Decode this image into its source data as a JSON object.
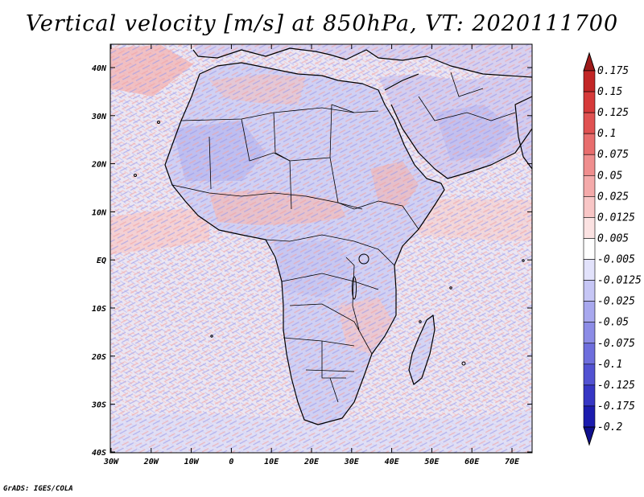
{
  "title": "Vertical velocity [m/s] at 850hPa, VT: 2020111700",
  "credit": "GrADS: IGES/COLA",
  "axes": {
    "lat_labels": [
      "40N",
      "30N",
      "20N",
      "10N",
      "EQ",
      "10S",
      "20S",
      "30S",
      "40S"
    ],
    "lon_labels": [
      "30W",
      "20W",
      "10W",
      "0",
      "10E",
      "20E",
      "30E",
      "40E",
      "50E",
      "60E",
      "70E"
    ]
  },
  "colorbar": {
    "labels": [
      "0.175",
      "0.15",
      "0.125",
      "0.1",
      "0.075",
      "0.05",
      "0.025",
      "0.0125",
      "0.005",
      "-0.005",
      "-0.0125",
      "-0.025",
      "-0.05",
      "-0.075",
      "-0.1",
      "-0.125",
      "-0.175",
      "-0.2"
    ],
    "colors": [
      "#9e1a1a",
      "#c22626",
      "#d63a3a",
      "#e05252",
      "#e86e6e",
      "#ef8e8e",
      "#f4aaaa",
      "#f8c6c6",
      "#fbe2e2",
      "#ffffff",
      "#e2e2fb",
      "#c6c6f5",
      "#a8a8ee",
      "#8c8ce6",
      "#6e6edd",
      "#5252d2",
      "#3636c4",
      "#1c1cae",
      "#10108e"
    ]
  },
  "field_colors": {
    "ocean": "#ebe6f2",
    "land": "#d6d6f4",
    "sahara_red": "#f0c8c8",
    "coastline": "#000000"
  }
}
